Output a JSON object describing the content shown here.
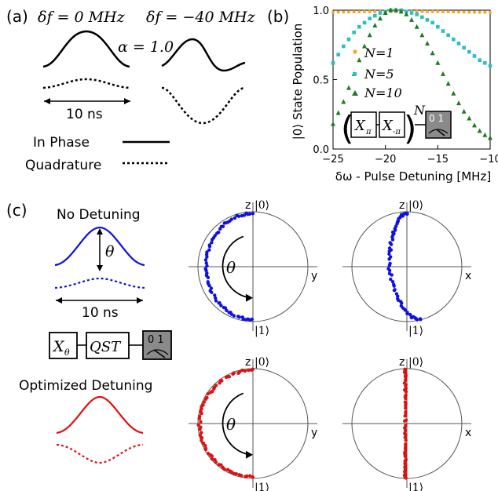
{
  "panel_a": {
    "label": "(a)",
    "delta_f_0": "δf = 0 MHz",
    "delta_f_40": "δf = −40 MHz",
    "alpha": "α = 1.0",
    "duration": "10 ns",
    "legend_inphase": "In Phase",
    "legend_quadrature": "Quadrature"
  },
  "panel_b": {
    "label": "(b)",
    "ylabel": "|0⟩ State Population",
    "xlabel": "δω - Pulse Detuning [MHz]",
    "gate_x_pi": "X",
    "gate_sub_pi": "π",
    "gate_sub_mpi": "-π",
    "exponent": "N",
    "meter_digits": "0 1"
  },
  "chart_data": {
    "type": "scatter",
    "xlim": [
      -25,
      -10
    ],
    "ylim": [
      0,
      1
    ],
    "xticks": [
      -25,
      -20,
      -15,
      -10
    ],
    "yticks": [
      0.0,
      0.5,
      1.0
    ],
    "xtick_labels": [
      "−25",
      "−20",
      "−15",
      "−10"
    ],
    "ytick_labels": [
      "0.0",
      "0.5",
      "1.0"
    ],
    "grid": false,
    "legend_placement": "middle-left",
    "series": [
      {
        "name": "N=1",
        "color": "#f5a623",
        "marker": "circle",
        "x": [
          -25.5,
          -25,
          -24.5,
          -24,
          -23.5,
          -23,
          -22.5,
          -22,
          -21.5,
          -21,
          -20.5,
          -20,
          -19.5,
          -19,
          -18.5,
          -18,
          -17.5,
          -17,
          -16.5,
          -16,
          -15.5,
          -15,
          -14.5,
          -14,
          -13.5,
          -13,
          -12.5,
          -12,
          -11.5,
          -11,
          -10.5,
          -10
        ],
        "y": [
          0.985,
          0.986,
          0.987,
          0.987,
          0.988,
          0.989,
          0.989,
          0.99,
          0.99,
          0.99,
          0.99,
          0.99,
          0.99,
          0.99,
          0.99,
          0.99,
          0.99,
          0.99,
          0.99,
          0.99,
          0.99,
          0.99,
          0.989,
          0.989,
          0.988,
          0.988,
          0.987,
          0.986,
          0.986,
          0.985,
          0.985,
          0.984
        ]
      },
      {
        "name": "N=5",
        "color": "#29c0c0",
        "marker": "square",
        "x": [
          -25.5,
          -25,
          -24.5,
          -24,
          -23.5,
          -23,
          -22.5,
          -22,
          -21.5,
          -21,
          -20.5,
          -20,
          -19.5,
          -19,
          -18.5,
          -18,
          -17.5,
          -17,
          -16.5,
          -16,
          -15.5,
          -15,
          -14.5,
          -14,
          -13.5,
          -13,
          -12.5,
          -12,
          -11.5,
          -11,
          -10.5,
          -10
        ],
        "y": [
          0.57,
          0.62,
          0.68,
          0.74,
          0.79,
          0.84,
          0.88,
          0.91,
          0.94,
          0.96,
          0.98,
          0.99,
          1.0,
          1.0,
          1.0,
          0.99,
          0.98,
          0.97,
          0.95,
          0.93,
          0.91,
          0.88,
          0.85,
          0.82,
          0.79,
          0.76,
          0.73,
          0.7,
          0.67,
          0.64,
          0.62,
          0.6
        ]
      },
      {
        "name": "N=10",
        "color": "#1f7a1f",
        "marker": "triangle",
        "x": [
          -25.5,
          -25,
          -24.5,
          -24,
          -23.5,
          -23,
          -22.5,
          -22,
          -21.5,
          -21,
          -20.5,
          -20,
          -19.5,
          -19,
          -18.5,
          -18,
          -17.5,
          -17,
          -16.5,
          -16,
          -15.5,
          -15,
          -14.5,
          -14,
          -13.5,
          -13,
          -12.5,
          -12,
          -11.5,
          -11,
          -10.5,
          -10
        ],
        "y": [
          0.12,
          0.18,
          0.26,
          0.34,
          0.44,
          0.54,
          0.64,
          0.74,
          0.82,
          0.89,
          0.94,
          0.98,
          1.0,
          1.0,
          0.99,
          0.97,
          0.93,
          0.88,
          0.82,
          0.76,
          0.69,
          0.62,
          0.54,
          0.47,
          0.4,
          0.33,
          0.27,
          0.22,
          0.17,
          0.13,
          0.1,
          0.08
        ]
      }
    ]
  },
  "panel_c": {
    "label": "(c)",
    "no_detuning": "No Detuning",
    "optimized_detuning": "Optimized Detuning",
    "theta": "θ",
    "duration": "10 ns",
    "gate_x": "X",
    "gate_x_sub": "θ",
    "gate_qst": "QST",
    "meter_digits": "0 1",
    "axis_z": "z",
    "axis_y": "y",
    "axis_x": "x",
    "ket0": "|0⟩",
    "ket1": "|1⟩",
    "color_blue": "#1010e0",
    "color_red": "#e01010"
  }
}
